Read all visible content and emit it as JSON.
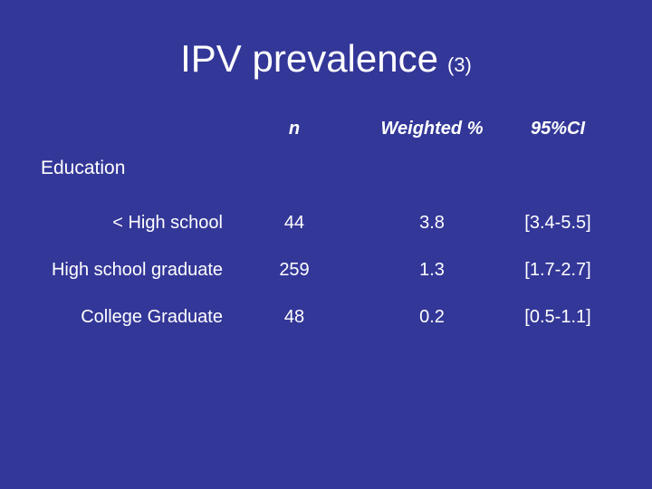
{
  "slide": {
    "background_color": "#333798",
    "text_color": "#ffffff",
    "title": {
      "main": "IPV prevalence",
      "suffix": "(3)"
    },
    "table": {
      "headers": {
        "n": "n",
        "weighted": "Weighted %",
        "ci": "95%CI"
      },
      "group_label": "Education",
      "rows": [
        {
          "label": "< High school",
          "n": "44",
          "weighted": "3.8",
          "ci": "[3.4-5.5]"
        },
        {
          "label": "High school graduate",
          "n": "259",
          "weighted": "1.3",
          "ci": "[1.7-2.7]"
        },
        {
          "label": "College Graduate",
          "n": "48",
          "weighted": "0.2",
          "ci": "[0.5-1.1]"
        }
      ]
    }
  },
  "chart_data": {
    "type": "table",
    "title": "IPV prevalence (3)",
    "columns": [
      "",
      "n",
      "Weighted %",
      "95%CI"
    ],
    "group": "Education",
    "rows": [
      [
        "< High school",
        44,
        3.8,
        "[3.4-5.5]"
      ],
      [
        "High school graduate",
        259,
        1.3,
        "[1.7-2.7]"
      ],
      [
        "College Graduate",
        48,
        0.2,
        "[0.5-1.1]"
      ]
    ]
  }
}
